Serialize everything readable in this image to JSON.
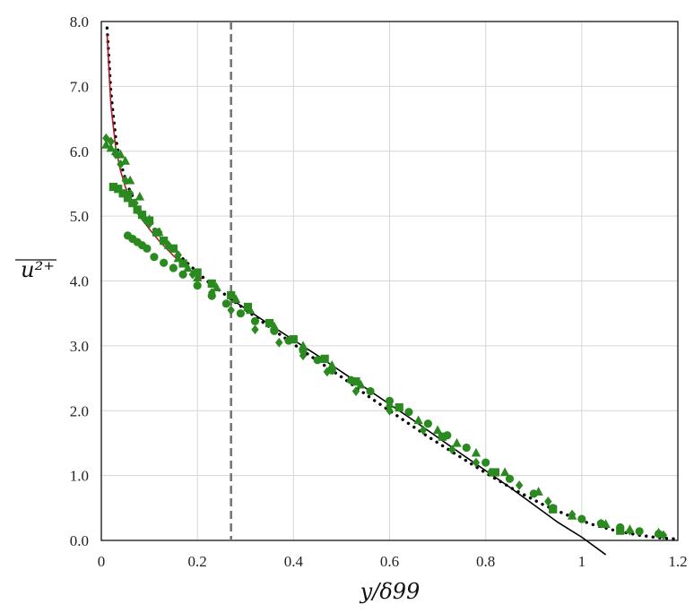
{
  "chart_data": {
    "type": "scatter",
    "title": "",
    "xlabel": "y/δ99",
    "ylabel": "u²⁺",
    "xlim": [
      0,
      1.2
    ],
    "ylim": [
      0,
      8
    ],
    "xticks": [
      "0",
      "0.2",
      "0.4",
      "0.6",
      "0.8",
      "1",
      "1.2"
    ],
    "yticks": [
      "0.0",
      "1.0",
      "2.0",
      "3.0",
      "4.0",
      "5.0",
      "6.0",
      "7.0",
      "8.0"
    ],
    "grid": true,
    "legend": "none",
    "vertical_reference_line": {
      "x": 0.27,
      "style": "dashed",
      "color": "#777777"
    },
    "series": [
      {
        "marker": "circle",
        "color": "#2a8a20",
        "x": [
          0.055,
          0.065,
          0.075,
          0.085,
          0.095,
          0.11,
          0.13,
          0.15,
          0.17,
          0.2,
          0.23,
          0.26,
          0.29,
          0.32,
          0.36,
          0.39,
          0.42,
          0.45,
          0.48,
          0.52,
          0.56,
          0.6,
          0.64,
          0.68,
          0.72,
          0.76,
          0.8,
          0.85,
          0.9,
          0.94,
          1.0,
          1.04,
          1.08,
          1.12,
          1.16
        ],
        "y": [
          4.7,
          4.65,
          4.6,
          4.55,
          4.5,
          4.37,
          4.28,
          4.2,
          4.1,
          3.93,
          3.77,
          3.65,
          3.5,
          3.38,
          3.23,
          3.08,
          2.93,
          2.78,
          2.62,
          2.47,
          2.3,
          2.15,
          1.98,
          1.8,
          1.62,
          1.43,
          1.2,
          0.95,
          0.72,
          0.5,
          0.33,
          0.26,
          0.2,
          0.14,
          0.1
        ]
      },
      {
        "marker": "square",
        "color": "#2a8a20",
        "x": [
          0.025,
          0.035,
          0.045,
          0.055,
          0.065,
          0.075,
          0.085,
          0.1,
          0.115,
          0.13,
          0.15,
          0.17,
          0.2,
          0.23,
          0.27,
          0.305,
          0.35,
          0.4,
          0.465,
          0.53,
          0.62,
          0.71,
          0.82,
          0.94,
          1.08
        ],
        "y": [
          5.45,
          5.42,
          5.35,
          5.28,
          5.2,
          5.1,
          5.02,
          4.93,
          4.75,
          4.62,
          4.5,
          4.27,
          4.13,
          3.96,
          3.78,
          3.6,
          3.35,
          3.1,
          2.8,
          2.45,
          2.05,
          1.6,
          1.05,
          0.48,
          0.15
        ]
      },
      {
        "marker": "diamond",
        "color": "#2a8a20",
        "x": [
          0.01,
          0.02,
          0.03,
          0.04,
          0.05,
          0.06,
          0.07,
          0.08,
          0.09,
          0.1,
          0.12,
          0.14,
          0.16,
          0.19,
          0.23,
          0.27,
          0.32,
          0.37,
          0.42,
          0.47,
          0.53,
          0.6,
          0.67,
          0.73,
          0.78,
          0.81,
          0.87,
          0.93,
          0.98,
          1.04,
          1.1,
          1.17
        ],
        "y": [
          6.2,
          6.15,
          5.95,
          5.8,
          5.55,
          5.35,
          5.2,
          5.05,
          4.95,
          4.88,
          4.75,
          4.55,
          4.4,
          4.1,
          3.82,
          3.55,
          3.25,
          3.05,
          2.85,
          2.6,
          2.3,
          2.0,
          1.7,
          1.4,
          1.2,
          1.05,
          0.85,
          0.6,
          0.4,
          0.26,
          0.15,
          0.08
        ]
      },
      {
        "marker": "triangle",
        "color": "#2a8a20",
        "x": [
          0.01,
          0.02,
          0.03,
          0.04,
          0.05,
          0.06,
          0.08,
          0.1,
          0.12,
          0.14,
          0.16,
          0.18,
          0.2,
          0.24,
          0.28,
          0.31,
          0.36,
          0.42,
          0.48,
          0.54,
          0.6,
          0.66,
          0.7,
          0.74,
          0.78,
          0.84,
          0.91,
          0.98,
          1.05,
          1.1,
          1.16
        ],
        "y": [
          6.1,
          6.05,
          6.0,
          5.95,
          5.85,
          5.55,
          5.3,
          4.95,
          4.75,
          4.55,
          4.35,
          4.2,
          4.05,
          3.9,
          3.72,
          3.55,
          3.3,
          3.0,
          2.7,
          2.4,
          2.1,
          1.85,
          1.7,
          1.5,
          1.35,
          1.05,
          0.75,
          0.38,
          0.25,
          0.17,
          0.12
        ]
      }
    ],
    "curves": [
      {
        "style": "dotted",
        "color": "#000000",
        "x": [
          0.012,
          0.02,
          0.03,
          0.04,
          0.05,
          0.06,
          0.08,
          0.1,
          0.12,
          0.15,
          0.18,
          0.22,
          0.27,
          0.32,
          0.38,
          0.44,
          0.5,
          0.56,
          0.62,
          0.68,
          0.74,
          0.8,
          0.86,
          0.92,
          0.97,
          1.02,
          1.07,
          1.12,
          1.16,
          1.2
        ],
        "y": [
          7.9,
          6.9,
          6.2,
          5.82,
          5.58,
          5.38,
          5.1,
          4.9,
          4.72,
          4.48,
          4.27,
          4.0,
          3.72,
          3.45,
          3.13,
          2.82,
          2.52,
          2.2,
          1.9,
          1.6,
          1.32,
          1.04,
          0.78,
          0.55,
          0.39,
          0.25,
          0.15,
          0.08,
          0.04,
          0.02
        ]
      },
      {
        "style": "solid",
        "color": "#aa1f2d",
        "x": [
          0.012,
          0.02,
          0.03,
          0.04,
          0.05,
          0.06,
          0.08,
          0.1,
          0.12,
          0.15,
          0.18,
          0.21
        ],
        "y": [
          7.8,
          6.7,
          6.05,
          5.7,
          5.45,
          5.27,
          5.0,
          4.8,
          4.62,
          4.39,
          4.2,
          4.03
        ]
      },
      {
        "style": "solid",
        "color": "#000000",
        "x": [
          0.27,
          0.35,
          0.45,
          0.55,
          0.65,
          0.75,
          0.85,
          0.95,
          1.0,
          1.05
        ],
        "y": [
          3.72,
          3.33,
          2.85,
          2.35,
          1.85,
          1.33,
          0.82,
          0.28,
          0.05,
          -0.22
        ]
      }
    ]
  }
}
